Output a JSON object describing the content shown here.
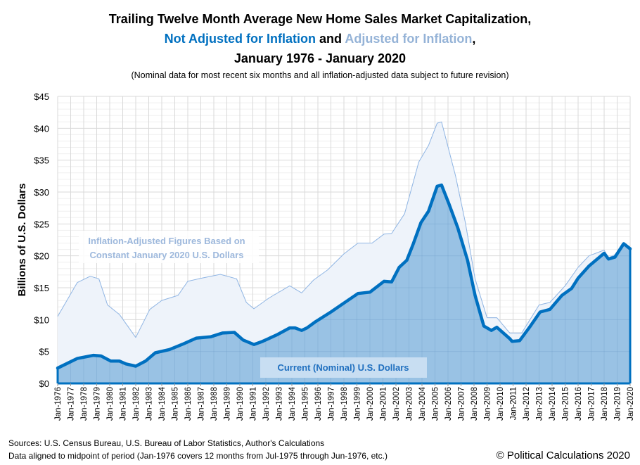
{
  "chart_data": {
    "type": "area",
    "title": {
      "line1": "Trailing Twelve Month Average New Home Sales Market Capitalization,",
      "line2_part1": "Not Adjusted for Inflation",
      "line2_part2": " and ",
      "line2_part3": "Adjusted for Inflation",
      "line2_part4": ",",
      "line3": "January 1976 - January 2020"
    },
    "subtitle": "(Nominal data for most recent six months and all inflation-adjusted data subject to future revision)",
    "ylabel": "Billions of U.S. Dollars",
    "xlabel": "",
    "ylim": [
      0,
      45
    ],
    "yticks": [
      "$0",
      "$5",
      "$10",
      "$15",
      "$20",
      "$25",
      "$30",
      "$35",
      "$40",
      "$45"
    ],
    "xlim": [
      "1976-01",
      "2020-01"
    ],
    "xticks": [
      "Jan-1976",
      "Jan-1977",
      "Jan-1978",
      "Jan-1979",
      "Jan-1980",
      "Jan-1981",
      "Jan-1982",
      "Jan-1983",
      "Jan-1984",
      "Jan-1985",
      "Jan-1986",
      "Jan-1987",
      "Jan-1988",
      "Jan-1989",
      "Jan-1990",
      "Jan-1991",
      "Jan-1992",
      "Jan-1993",
      "Jan-1994",
      "Jan-1995",
      "Jan-1996",
      "Jan-1997",
      "Jan-1998",
      "Jan-1999",
      "Jan-2000",
      "Jan-2001",
      "Jan-2002",
      "Jan-2003",
      "Jan-2004",
      "Jan-2005",
      "Jan-2006",
      "Jan-2007",
      "Jan-2008",
      "Jan-2009",
      "Jan-2010",
      "Jan-2011",
      "Jan-2012",
      "Jan-2013",
      "Jan-2014",
      "Jan-2015",
      "Jan-2016",
      "Jan-2017",
      "Jan-2018",
      "Jan-2019",
      "Jan-2020"
    ],
    "grid": true,
    "colors": {
      "nominal": "#0070c0",
      "nominal_fill": "#8fbde1",
      "adjusted": "#8eb4e3",
      "adjusted_fill": "#eef3fa",
      "grid": "#d9d9d9"
    },
    "series": [
      {
        "name": "Inflation-Adjusted Figures Based on Constant January 2020 U.S. Dollars",
        "label_line1": "Inflation-Adjusted Figures Based on",
        "label_line2": "Constant January 2020 U.S. Dollars",
        "points": [
          [
            "1976-01",
            10.5
          ],
          [
            "1977-07",
            15.8
          ],
          [
            "1978-07",
            16.8
          ],
          [
            "1979-03",
            16.4
          ],
          [
            "1979-11",
            12.3
          ],
          [
            "1980-10",
            10.8
          ],
          [
            "1982-01",
            7.2
          ],
          [
            "1983-02",
            11.6
          ],
          [
            "1984-01",
            13.0
          ],
          [
            "1985-04",
            13.8
          ],
          [
            "1986-01",
            16.0
          ],
          [
            "1986-11",
            16.4
          ],
          [
            "1988-07",
            17.1
          ],
          [
            "1989-10",
            16.4
          ],
          [
            "1990-07",
            12.7
          ],
          [
            "1991-02",
            11.7
          ],
          [
            "1992-04",
            13.4
          ],
          [
            "1993-11",
            15.3
          ],
          [
            "1994-10",
            14.2
          ],
          [
            "1995-09",
            16.2
          ],
          [
            "1996-10",
            17.8
          ],
          [
            "1998-01",
            20.3
          ],
          [
            "1999-02",
            22.0
          ],
          [
            "2000-03",
            22.0
          ],
          [
            "2001-02",
            23.4
          ],
          [
            "2001-09",
            23.5
          ],
          [
            "2002-09",
            26.6
          ],
          [
            "2003-10",
            34.7
          ],
          [
            "2004-07",
            37.3
          ],
          [
            "2005-03",
            40.8
          ],
          [
            "2005-07",
            41.0
          ],
          [
            "2005-11",
            38.4
          ],
          [
            "2006-08",
            32.5
          ],
          [
            "2007-05",
            25.2
          ],
          [
            "2008-02",
            16.4
          ],
          [
            "2009-01",
            10.3
          ],
          [
            "2009-10",
            10.3
          ],
          [
            "2010-10",
            7.9
          ],
          [
            "2011-09",
            7.9
          ],
          [
            "2013-01",
            12.3
          ],
          [
            "2013-11",
            12.7
          ],
          [
            "2015-01",
            15.3
          ],
          [
            "2016-01",
            18.2
          ],
          [
            "2016-11",
            20.0
          ],
          [
            "2018-01",
            20.9
          ],
          [
            "2018-05",
            19.7
          ],
          [
            "2018-11",
            20.2
          ],
          [
            "2019-07",
            21.9
          ],
          [
            "2020-01",
            21.1
          ]
        ]
      },
      {
        "name": "Current (Nominal) U.S. Dollars",
        "label": "Current (Nominal) U.S. Dollars",
        "points": [
          [
            "1976-01",
            2.4
          ],
          [
            "1977-07",
            3.9
          ],
          [
            "1978-10",
            4.4
          ],
          [
            "1979-05",
            4.3
          ],
          [
            "1980-02",
            3.5
          ],
          [
            "1980-10",
            3.5
          ],
          [
            "1981-04",
            3.05
          ],
          [
            "1982-01",
            2.7
          ],
          [
            "1982-10",
            3.5
          ],
          [
            "1983-07",
            4.8
          ],
          [
            "1984-08",
            5.3
          ],
          [
            "1985-09",
            6.2
          ],
          [
            "1986-09",
            7.1
          ],
          [
            "1987-10",
            7.3
          ],
          [
            "1988-09",
            7.9
          ],
          [
            "1989-08",
            8.0
          ],
          [
            "1990-04",
            6.8
          ],
          [
            "1991-02",
            6.1
          ],
          [
            "1991-10",
            6.6
          ],
          [
            "1992-11",
            7.6
          ],
          [
            "1993-11",
            8.7
          ],
          [
            "1994-04",
            8.7
          ],
          [
            "1994-10",
            8.3
          ],
          [
            "1995-03",
            8.7
          ],
          [
            "1995-11",
            9.7
          ],
          [
            "1997-01",
            11.2
          ],
          [
            "1998-01",
            12.6
          ],
          [
            "1999-02",
            14.1
          ],
          [
            "2000-01",
            14.3
          ],
          [
            "2001-02",
            16.0
          ],
          [
            "2001-09",
            15.9
          ],
          [
            "2002-04",
            18.2
          ],
          [
            "2002-11",
            19.3
          ],
          [
            "2003-05",
            21.9
          ],
          [
            "2003-12",
            25.2
          ],
          [
            "2004-07",
            27.0
          ],
          [
            "2005-03",
            30.9
          ],
          [
            "2005-07",
            31.1
          ],
          [
            "2006-02",
            28.1
          ],
          [
            "2006-10",
            24.4
          ],
          [
            "2007-07",
            19.3
          ],
          [
            "2008-02",
            13.8
          ],
          [
            "2008-10",
            9.0
          ],
          [
            "2009-05",
            8.3
          ],
          [
            "2009-10",
            8.8
          ],
          [
            "2010-10",
            7.0
          ],
          [
            "2010-12",
            6.6
          ],
          [
            "2011-07",
            6.7
          ],
          [
            "2012-05",
            9.0
          ],
          [
            "2013-02",
            11.2
          ],
          [
            "2013-11",
            11.6
          ],
          [
            "2014-10",
            13.8
          ],
          [
            "2015-07",
            14.9
          ],
          [
            "2016-01",
            16.5
          ],
          [
            "2016-11",
            18.4
          ],
          [
            "2018-01",
            20.4
          ],
          [
            "2018-05",
            19.5
          ],
          [
            "2018-11",
            19.8
          ],
          [
            "2019-07",
            21.9
          ],
          [
            "2020-01",
            21.1
          ]
        ]
      }
    ]
  },
  "footer": {
    "sources": "Sources: U.S. Census Bureau, U.S. Bureau of Labor Statistics, Author's Calculations",
    "note": "Data aligned to midpoint of period (Jan-1976 covers 12 months from Jul-1975 through Jun-1976, etc.)",
    "copyright": "© Political Calculations 2020"
  }
}
